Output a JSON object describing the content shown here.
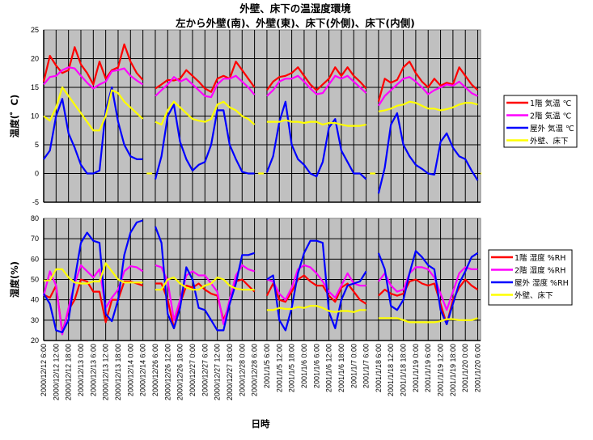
{
  "title": "外壁、床下の温湿度環境",
  "subtitle": "左から外壁(南)、外壁(東)、床下(外側)、床下(内側)",
  "xlabel": "日時",
  "chart_data": [
    {
      "type": "line",
      "ylabel": "温度(゜C)",
      "ylim": [
        -5,
        25
      ],
      "yticks": [
        25,
        20,
        15,
        10,
        5,
        0,
        -5
      ],
      "grid": true,
      "legend_position": "right",
      "group_start_index": [
        0,
        9,
        18,
        27
      ],
      "point_step": 0.5,
      "gap_marks": {
        "series": 3,
        "value": 0
      },
      "series": [
        {
          "name": "1階 気温 ℃",
          "color": "#ff0000",
          "groups": [
            [
              16,
              20.5,
              18.8,
              17.5,
              18,
              22,
              19,
              17.5,
              15.5,
              19.5,
              16.5,
              18,
              18.5,
              22.5,
              19.5,
              17.5,
              16.3
            ],
            [
              14.8,
              15.5,
              16.3,
              16.2,
              16.5,
              18,
              17,
              16,
              14.8,
              14.2,
              16.5,
              17,
              16.5,
              19.5,
              18,
              16.5,
              15
            ],
            [
              14.5,
              16,
              16.8,
              17,
              17.5,
              18.5,
              17,
              15.5,
              14.5,
              15.5,
              16.5,
              18.5,
              17,
              18.5,
              17,
              16,
              14.8
            ],
            [
              12.5,
              16.5,
              15.8,
              16.3,
              18.5,
              19.5,
              17.5,
              16,
              15,
              16.5,
              15.3,
              15.8,
              15.5,
              18.5,
              17,
              15.5,
              14.5
            ]
          ]
        },
        {
          "name": "2階 気温 ℃",
          "color": "#ff00ff",
          "groups": [
            [
              15.5,
              16.8,
              17,
              18,
              18.5,
              18.3,
              17,
              15.8,
              14.8,
              15.5,
              16,
              17.8,
              18,
              18.3,
              17,
              16.2,
              15.5
            ],
            [
              13.5,
              14.5,
              15.5,
              16.8,
              16,
              16.5,
              15.5,
              14.5,
              13.5,
              13.3,
              15.5,
              16.5,
              16.5,
              17,
              16,
              15,
              13.7
            ],
            [
              13.5,
              14.5,
              16,
              16.5,
              16.5,
              17,
              16,
              14.8,
              13.8,
              14,
              15.5,
              17,
              16.5,
              17,
              16,
              15,
              14
            ],
            [
              11.8,
              13.5,
              14.5,
              15.5,
              16.5,
              16.8,
              16,
              15,
              13.8,
              14.5,
              15,
              15.5,
              15.3,
              16,
              15,
              14,
              13.5
            ]
          ]
        },
        {
          "name": "屋外 気温 ℃",
          "color": "#0000ff",
          "groups": [
            [
              2.5,
              4,
              10,
              13,
              7,
              4.5,
              1.5,
              0,
              0,
              0.5,
              11,
              15,
              9,
              5,
              3,
              2.5,
              2.5
            ],
            [
              -1,
              3,
              10,
              12,
              5.5,
              2.5,
              0.5,
              1.5,
              2,
              5,
              11,
              11,
              5,
              2.5,
              0.3,
              0,
              0
            ],
            [
              0.2,
              3,
              9,
              12.5,
              5,
              2.5,
              1.5,
              0,
              -0.5,
              2,
              8,
              9.5,
              4,
              2,
              0,
              0,
              -1
            ],
            [
              -3.5,
              1,
              8.5,
              10.5,
              5,
              3,
              1.5,
              0.8,
              0,
              -0.2,
              5.5,
              7,
              4.5,
              3,
              2.5,
              0.5,
              -1.2
            ]
          ]
        },
        {
          "name": "外壁、床下",
          "color": "#ffff00",
          "groups": [
            [
              10,
              9.2,
              11.5,
              15,
              13.5,
              12,
              10.5,
              9,
              7.5,
              7.5,
              10,
              14.5,
              14,
              12.5,
              11.5,
              10.5,
              9.5
            ],
            [
              9,
              8.5,
              11,
              12.5,
              11.5,
              10.5,
              9.5,
              9.2,
              9,
              9.5,
              12,
              12.5,
              11.5,
              11,
              10,
              9.5,
              8.5
            ],
            [
              9,
              9,
              9,
              9.3,
              9,
              9,
              8.8,
              9,
              9,
              8.5,
              8.8,
              8.8,
              8.5,
              8.3,
              8.3,
              8.3,
              8.5
            ],
            [
              10.8,
              11,
              11.3,
              11.8,
              12,
              12.5,
              12.3,
              11.8,
              11.3,
              11.3,
              11,
              11.2,
              11.5,
              12,
              12.3,
              12.3,
              12
            ]
          ]
        }
      ]
    },
    {
      "type": "line",
      "ylabel": "湿度(%)",
      "ylim": [
        20,
        80
      ],
      "yticks": [
        80,
        70,
        60,
        50,
        40,
        30,
        20
      ],
      "grid": true,
      "legend_position": "right",
      "group_start_index": [
        0,
        9,
        18,
        27
      ],
      "point_step": 0.5,
      "series": [
        {
          "name": "1階 湿度 %RH",
          "color": "#ff0000",
          "groups": [
            [
              42.5,
              41,
              47,
              24,
              35,
              40,
              50,
              49,
              44,
              44,
              29,
              40,
              40,
              49,
              49,
              48,
              47
            ],
            [
              48,
              48,
              40,
              26,
              38,
              47,
              46,
              48,
              45,
              43,
              42,
              30,
              38,
              49,
              50,
              47,
              44
            ],
            [
              42,
              48,
              40,
              39,
              44,
              50,
              52,
              49,
              47,
              47,
              42,
              39,
              46,
              48,
              44,
              40,
              38
            ],
            [
              42,
              45,
              43,
              42,
              43,
              49,
              50,
              48,
              47,
              48,
              38,
              28,
              40,
              46,
              50,
              47,
              45
            ]
          ]
        },
        {
          "name": "2階 湿度 %RH",
          "color": "#ff00ff",
          "groups": [
            [
              42,
              54,
              47,
              23,
              36,
              48,
              57,
              54,
              51,
              55,
              36,
              41,
              45,
              54,
              56.5,
              56,
              54
            ],
            [
              57,
              56,
              49,
              30,
              40,
              52,
              54,
              52,
              52,
              48,
              44,
              28,
              40,
              52,
              57,
              55,
              54
            ],
            [
              50,
              49,
              43,
              40,
              46,
              55,
              57,
              56,
              53,
              49,
              44,
              41,
              47,
              53,
              48,
              47,
              47
            ],
            [
              49,
              53,
              47,
              44,
              45,
              53,
              56,
              56,
              55,
              51,
              43,
              35,
              44,
              53,
              56,
              55,
              55
            ]
          ]
        },
        {
          "name": "屋外 湿度 %RH",
          "color": "#0000ff",
          "groups": [
            [
              43,
              38,
              25,
              24,
              30,
              50,
              68,
              73,
              69,
              68,
              33,
              29.5,
              40,
              62,
              73,
              78,
              79
            ],
            [
              76,
              68,
              33,
              26,
              36,
              56,
              50,
              36,
              35,
              30,
              25,
              25,
              38,
              48,
              62,
              62,
              63
            ],
            [
              50,
              52,
              30,
              25,
              36,
              53,
              63,
              69,
              69,
              68,
              34,
              26,
              40,
              47,
              48,
              49,
              54
            ],
            [
              63,
              55,
              37,
              35,
              40,
              53,
              64,
              61,
              57,
              55,
              35,
              28,
              38,
              48,
              54,
              61,
              63
            ]
          ]
        },
        {
          "name": "外壁、床下",
          "color": "#ffff00",
          "groups": [
            [
              49.5,
              49.5,
              55,
              55,
              51,
              48.5,
              48,
              48,
              49,
              49,
              58,
              54,
              50,
              48.5,
              48.5,
              48.5,
              48.5
            ],
            [
              45,
              45,
              50,
              51,
              48,
              46,
              45,
              45,
              47,
              48,
              51,
              50,
              47,
              45.5,
              45,
              45,
              45
            ],
            [
              35,
              35,
              36,
              35.5,
              35.5,
              36.5,
              36,
              37,
              37,
              36,
              34.5,
              34,
              34.5,
              34.5,
              34,
              35,
              35
            ],
            [
              31,
              31,
              31,
              31,
              30,
              29,
              29,
              29,
              29,
              29,
              29.5,
              30.5,
              30.5,
              30,
              30,
              30,
              31
            ]
          ]
        }
      ]
    }
  ],
  "x_labels": [
    "2000/12/12 6:00",
    "2000/12/12 12:00",
    "2000/12/12 18:00",
    "2000/12/13 0:00",
    "2000/12/13 6:00",
    "2000/12/13 12:00",
    "2000/12/13 18:00",
    "2000/12/14 0:00",
    "2000/12/14 6:00",
    "2000/12/26 6:00",
    "2000/12/26 12:00",
    "2000/12/26 18:00",
    "2000/12/27 0:00",
    "2000/12/27 6:00",
    "2000/12/27 12:00",
    "2000/12/27 18:00",
    "2000/12/28 0:00",
    "2000/12/28 6:00",
    "2001/1/5 6:00",
    "2001/1/5 12:00",
    "2001/1/5 18:00",
    "2001/1/6 0:00",
    "2001/1/6 6:00",
    "2001/1/6 12:00",
    "2001/1/6 18:00",
    "2001/1/7 0:00",
    "2001/1/7 6:00",
    "2001/1/18 6:00",
    "2001/1/18 12:00",
    "2001/1/18 18:00",
    "2001/1/19 0:00",
    "2001/1/19 6:00",
    "2001/1/19 12:00",
    "2001/1/19 18:00",
    "2001/1/20 0:00",
    "2001/1/20 6:00"
  ]
}
